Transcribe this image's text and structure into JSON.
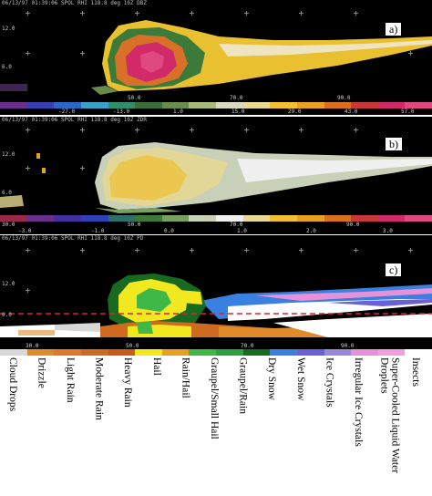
{
  "panels": [
    {
      "header": "06/13/97 01:39:06 SPOL RHI 118.8 deg 10Z DBZ",
      "label": "a)",
      "y_labels": [
        "12.0",
        "6.0"
      ],
      "x_ticks": [
        "50.0",
        "70.0",
        "90.0"
      ],
      "colorbar_ticks": [
        "-27.0",
        "-13.0",
        "1.0",
        "15.0",
        "29.0",
        "43.0",
        "57.0"
      ],
      "colorbar_colors": [
        "#6a2f8a",
        "#3a3fb0",
        "#2a67c8",
        "#3aa0c8",
        "#2f8f6a",
        "#3c6e3a",
        "#6a8c4a",
        "#a8b878",
        "#d8d8c0",
        "#e8d890",
        "#f0c030",
        "#e8a020",
        "#d87020",
        "#c83838",
        "#d02a68",
        "#e04880"
      ]
    },
    {
      "header": "06/13/97 01:39:06 SPOL RHI 118.8 deg 10Z ZDR",
      "label": "b)",
      "y_labels": [
        "12.0",
        "6.0"
      ],
      "x_ticks": [
        "30.0",
        "50.0",
        "70.0",
        "90.0"
      ],
      "colorbar_ticks": [
        "-3.0",
        "-1.0",
        "0.0",
        "1.0",
        "2.0",
        "3.0"
      ],
      "colorbar_colors": [
        "#9a2848",
        "#6a2f8a",
        "#4030a0",
        "#3040b8",
        "#2f6f6a",
        "#3c7a3a",
        "#7aa060",
        "#c8d0b8",
        "#f0f0f0",
        "#e8d890",
        "#f0c030",
        "#e8a020",
        "#d87020",
        "#c83838",
        "#d02a68",
        "#e04880"
      ]
    },
    {
      "header": "06/13/97 01:39:06 SPOL RHI 118.8 deg 10Z PD",
      "label": "c)",
      "y_labels": [
        "12.0",
        "6.0"
      ],
      "x_ticks": [
        "30.0",
        "50.0",
        "70.0",
        "90.0"
      ],
      "colorbar_ticks": [
        "30.0",
        "50.0",
        "70.0",
        "90.0"
      ],
      "colorbar_colors": [
        "#d8d8d8",
        "#e08a2a",
        "#e07a2a",
        "#d06a20",
        "#c85a1a",
        "#f2e820",
        "#e8a020",
        "#40b848",
        "#2aa040",
        "#186a20",
        "#3a80e0",
        "#6a60d8",
        "#9a88d8",
        "#e890d8",
        "#f0a0e0",
        "#ffffff"
      ]
    }
  ],
  "legend": [
    "Cloud Drops",
    "Drizzle",
    "Light Rain",
    "Moderate Rain",
    "Heavy Rain",
    "Hail",
    "Rain/Hail",
    "Graupel/Small Hail",
    "Graupel/Rain",
    "Dry Snow",
    "Wet Snow",
    "Ice Crystals",
    "Irregular Ice Crystals",
    "Super-Cooled Liquid Water Droplets",
    "Insects"
  ]
}
